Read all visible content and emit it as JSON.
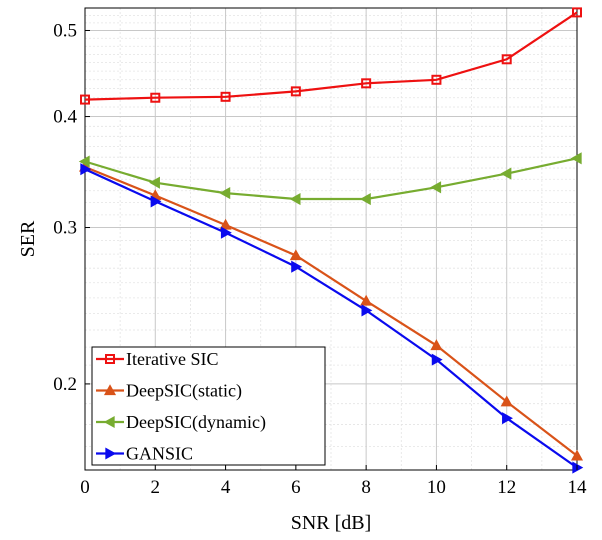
{
  "chart_data": {
    "type": "line",
    "title": "",
    "xlabel": "SNR [dB]",
    "ylabel": "SER",
    "xlim": [
      0,
      14
    ],
    "ylim": [
      0.16,
      0.53
    ],
    "yscale": "log",
    "grid": true,
    "legend_position": "bottom-left",
    "x": [
      0,
      2,
      4,
      6,
      8,
      10,
      12,
      14
    ],
    "x_ticks": [
      0,
      2,
      4,
      6,
      8,
      10,
      12,
      14
    ],
    "y_ticks": [
      0.2,
      0.3,
      0.4,
      0.5
    ],
    "y_tick_labels": [
      "0.2",
      "0.3",
      "0.4",
      "0.5"
    ],
    "series": [
      {
        "name": "Iterative SIC",
        "color": "#ee1111",
        "marker": "square",
        "values": [
          0.418,
          0.42,
          0.421,
          0.427,
          0.436,
          0.44,
          0.464,
          0.524
        ]
      },
      {
        "name": "DeepSIC(static)",
        "color": "#d95319",
        "marker": "triangle-up",
        "values": [
          0.351,
          0.326,
          0.302,
          0.279,
          0.248,
          0.221,
          0.191,
          0.166
        ]
      },
      {
        "name": "DeepSIC(dynamic)",
        "color": "#77ac30",
        "marker": "triangle-left",
        "values": [
          0.356,
          0.337,
          0.328,
          0.323,
          0.323,
          0.333,
          0.345,
          0.359
        ]
      },
      {
        "name": "GANSIC",
        "color": "#0a0aee",
        "marker": "triangle-right",
        "values": [
          0.349,
          0.321,
          0.296,
          0.271,
          0.242,
          0.213,
          0.183,
          0.161
        ]
      }
    ]
  }
}
